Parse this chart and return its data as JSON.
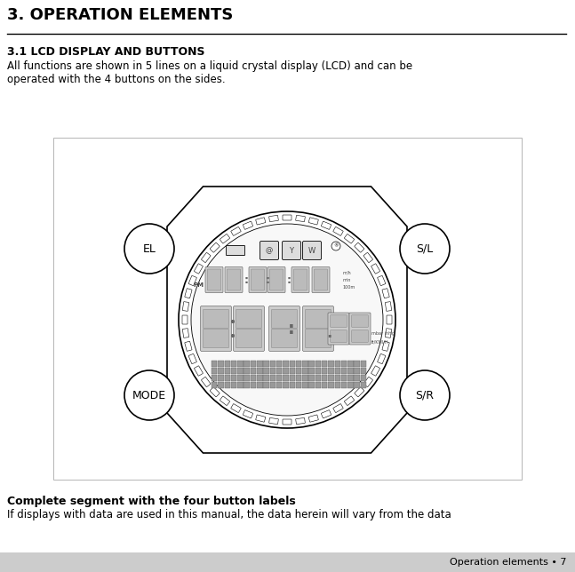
{
  "title": "3. OPERATION ELEMENTS",
  "section_title": "3.1 LCD DISPLAY AND BUTTONS",
  "section_line1": "All functions are shown in 5 lines on a liquid crystal display (LCD) and can be",
  "section_line2": "operated with the 4 buttons on the sides.",
  "caption_bold": "Complete segment with the four button labels",
  "caption_normal": "If displays with data are used in this manual, the data herein will vary from the data",
  "footer_text": "Operation elements • 7",
  "bg_color": "#ffffff",
  "footer_bg": "#cccccc",
  "title_color": "#000000"
}
